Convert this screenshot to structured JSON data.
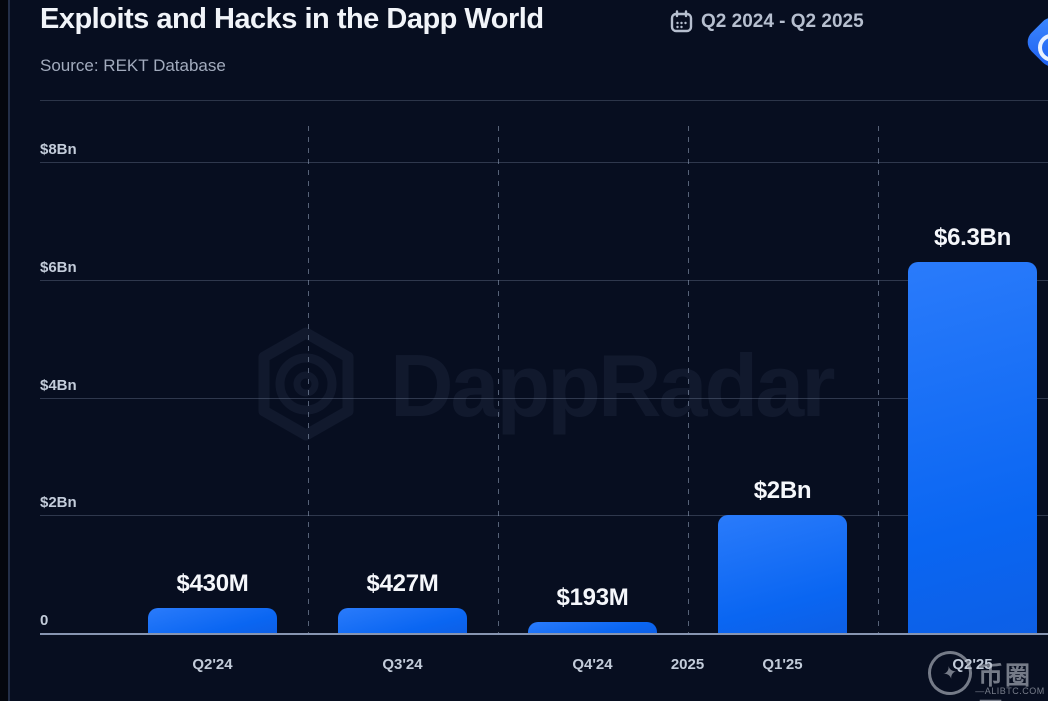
{
  "header": {
    "title": "Exploits and Hacks in the Dapp World",
    "source": "Source: REKT Database",
    "date_range": "Q2 2024 - Q2 2025"
  },
  "watermarks": {
    "center_text": "DappRadar",
    "bottom_right_site_name": "币圈网",
    "bottom_right_star": "✦",
    "bottom_right_domain": "—ALIBTC.COM—"
  },
  "colors": {
    "background": "#070e20",
    "bar_blue": "#0a66f2",
    "accent_logo_blue": "#2a6df5",
    "grid_line": "rgba(150,165,195,0.28)",
    "axis_text": "#c3ccda",
    "title_text": "#f1f4f9",
    "secondary_text": "#a2abbd"
  },
  "chart_data": {
    "type": "bar",
    "title": "Exploits and Hacks in the Dapp World",
    "source": "REKT Database",
    "period": "Q2 2024 - Q2 2025",
    "categories": [
      "Q2'24",
      "Q3'24",
      "Q4'24",
      "Q1'25",
      "Q2'25"
    ],
    "values_usd_bn": [
      0.43,
      0.427,
      0.193,
      2.0,
      6.3
    ],
    "bar_labels": [
      "$430M",
      "$427M",
      "$193M",
      "$2Bn",
      "$6.3Bn"
    ],
    "y_ticks": [
      {
        "label": "$8Bn",
        "value": 8
      },
      {
        "label": "$6Bn",
        "value": 6
      },
      {
        "label": "$4Bn",
        "value": 4
      },
      {
        "label": "$2Bn",
        "value": 2
      },
      {
        "label": "0",
        "value": 0
      }
    ],
    "ylim": [
      0,
      8
    ],
    "xlabel": "",
    "ylabel": "",
    "year_divider": {
      "label": "2025",
      "between": [
        "Q4'24",
        "Q1'25"
      ]
    },
    "legend": "none",
    "grid": "horizontal-solid and vertical-dashed quarter separators"
  }
}
